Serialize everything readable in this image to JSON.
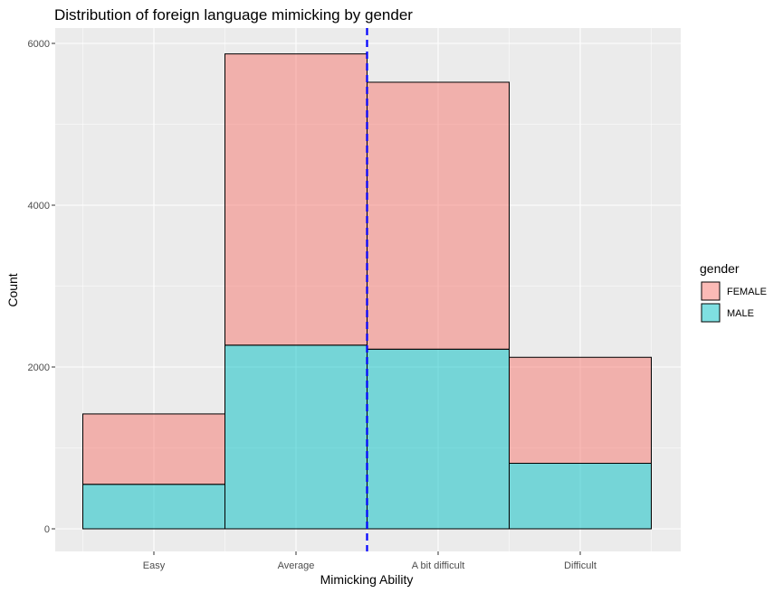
{
  "chart_data": {
    "type": "bar",
    "stacked": true,
    "title": "Distribution of foreign language mimicking by gender",
    "xlabel": "Mimicking Ability",
    "ylabel": "Count",
    "categories": [
      "Easy",
      "Average",
      "A bit difficult",
      "Difficult"
    ],
    "series": [
      {
        "name": "MALE",
        "values": [
          550,
          2270,
          2220,
          810
        ],
        "color": "#00BFC4"
      },
      {
        "name": "FEMALE",
        "values": [
          870,
          3600,
          3300,
          1310
        ],
        "color": "#F8766D"
      }
    ],
    "ylim": [
      0,
      6000
    ],
    "yticks": [
      0,
      2000,
      4000,
      6000
    ],
    "reference_line": {
      "x": 2.5,
      "style": "dashed",
      "color": "#0000FF"
    },
    "legend": {
      "title": "gender",
      "position": "right",
      "entries": [
        "FEMALE",
        "MALE"
      ]
    },
    "grid": true,
    "background": "#EBEBEB"
  }
}
